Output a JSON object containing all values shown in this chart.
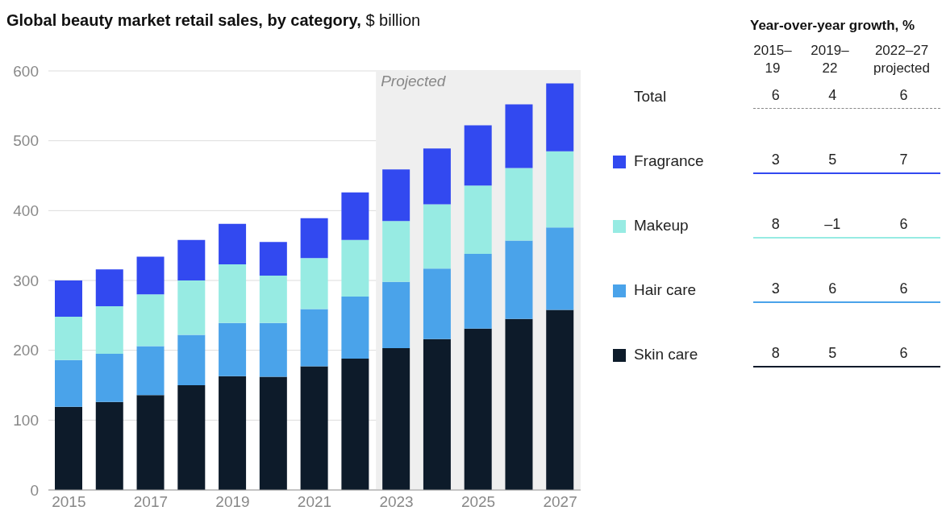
{
  "chart_data": {
    "type": "bar",
    "stacked": true,
    "title": "Global beauty market retail sales, by category,",
    "ylabel": "$ billion",
    "categories": [
      "2015",
      null,
      "2017",
      null,
      "2019",
      null,
      "2021",
      null,
      "2023",
      null,
      "2025",
      null,
      "2027"
    ],
    "series": [
      {
        "name": "Skin care",
        "color": "#0d1b2a",
        "values": [
          119,
          126,
          136,
          150,
          163,
          162,
          177,
          188,
          203,
          216,
          231,
          245,
          258
        ]
      },
      {
        "name": "Hair care",
        "color": "#4aa3ea",
        "values": [
          67,
          69,
          70,
          72,
          76,
          77,
          82,
          89,
          95,
          101,
          107,
          112,
          118
        ]
      },
      {
        "name": "Makeup",
        "color": "#97ebe3",
        "values": [
          62,
          68,
          74,
          78,
          84,
          68,
          73,
          81,
          87,
          92,
          98,
          104,
          109
        ]
      },
      {
        "name": "Fragrance",
        "color": "#3249f0",
        "values": [
          52,
          53,
          54,
          58,
          58,
          48,
          57,
          68,
          74,
          80,
          86,
          91,
          97
        ]
      }
    ],
    "ylim": [
      0,
      600
    ],
    "yticks": [
      0,
      100,
      200,
      300,
      400,
      500,
      600
    ],
    "grid": "y",
    "legend": "right",
    "bands": [
      {
        "axis": "x",
        "from": "2023",
        "to": "2027",
        "label": "Projected",
        "color": "#efefef"
      }
    ],
    "annotations": [
      "Year-over-year growth, %",
      "2015–19",
      "2019–22",
      "2022–27 projected",
      "Total",
      "6",
      "4",
      "6",
      "3",
      "5",
      "7",
      "8",
      "–1",
      "6",
      "3",
      "6",
      "6",
      "8",
      "5",
      "6"
    ]
  }
}
